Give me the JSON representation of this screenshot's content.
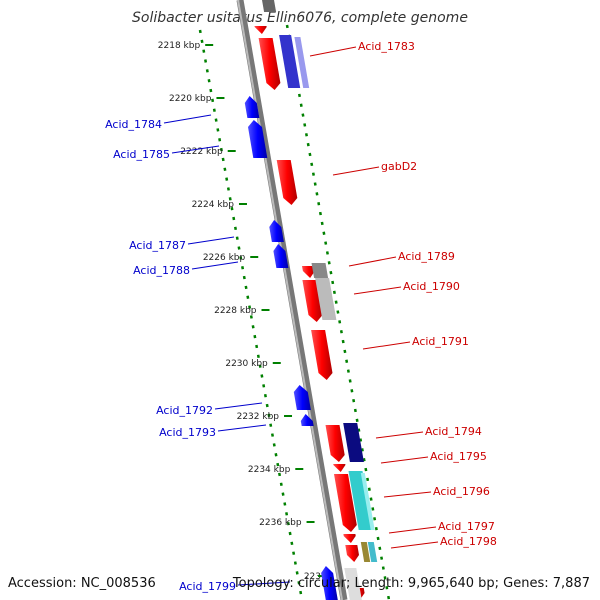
{
  "title": "Solibacter usitatus Ellin6076, complete genome",
  "footer": {
    "accession": "Accession: NC_008536",
    "info": "Topology: circular; Length: 9,965,640 bp; Genes: 7,887"
  },
  "ticks": [
    "2218 kbp",
    "2220 kbp",
    "2222 kbp",
    "2224 kbp",
    "2226 kbp",
    "2228 kbp",
    "2230 kbp",
    "2232 kbp",
    "2234 kbp",
    "2236 kbp",
    "223"
  ],
  "genes_forward": [
    "Acid_1783",
    "gabD2",
    "Acid_1789",
    "Acid_1790",
    "Acid_1791",
    "Acid_1794",
    "Acid_1795",
    "Acid_1796",
    "Acid_1797",
    "Acid_1798"
  ],
  "genes_reverse": [
    "Acid_1784",
    "Acid_1785",
    "Acid_1787",
    "Acid_1788",
    "Acid_1792",
    "Acid_1793",
    "Acid_1799"
  ],
  "colors": {
    "forward_gene": "#ff0000",
    "reverse_gene": "#0000ff",
    "forward_label": "#cc0000",
    "reverse_label": "#0000cc",
    "backbone": "#888888",
    "ruler": "#008000"
  }
}
